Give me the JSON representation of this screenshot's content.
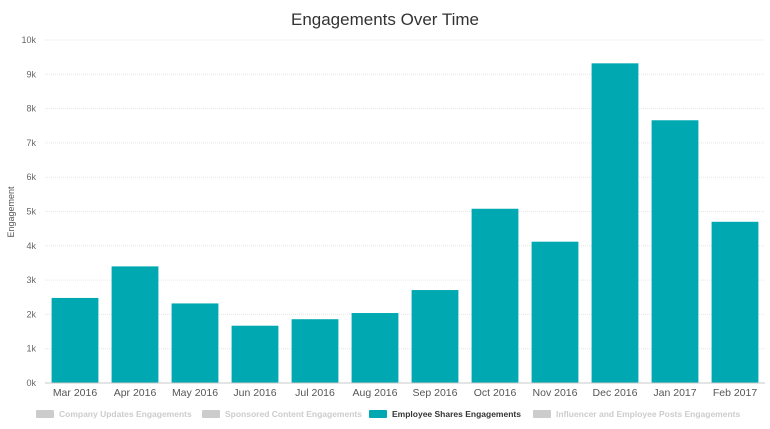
{
  "chart_data": {
    "type": "bar",
    "title": "Engagements Over Time",
    "xlabel": "",
    "ylabel": "Engagement",
    "ylim": [
      0,
      10000
    ],
    "y_ticks": [
      "0k",
      "1k",
      "2k",
      "3k",
      "4k",
      "5k",
      "6k",
      "7k",
      "8k",
      "9k",
      "10k"
    ],
    "grid": true,
    "legend_position": "bottom",
    "categories": [
      "Mar 2016",
      "Apr 2016",
      "May 2016",
      "Jun 2016",
      "Jul 2016",
      "Aug 2016",
      "Sep 2016",
      "Oct 2016",
      "Nov 2016",
      "Dec 2016",
      "Jan 2017",
      "Feb 2017"
    ],
    "series": [
      {
        "name": "Employee Shares Engagements",
        "color": "#00a9b1",
        "values": [
          2480,
          3400,
          2320,
          1670,
          1860,
          2040,
          2710,
          5080,
          4120,
          9320,
          7660,
          4700
        ]
      }
    ],
    "legend": [
      {
        "label": "Company Updates Engagements",
        "active": false,
        "color": "#cccccc"
      },
      {
        "label": "Sponsored Content Engagements",
        "active": false,
        "color": "#cccccc"
      },
      {
        "label": "Employee Shares Engagements",
        "active": true,
        "color": "#00a9b1"
      },
      {
        "label": "Influencer and Employee Posts Engagements",
        "active": false,
        "color": "#cccccc"
      }
    ]
  }
}
